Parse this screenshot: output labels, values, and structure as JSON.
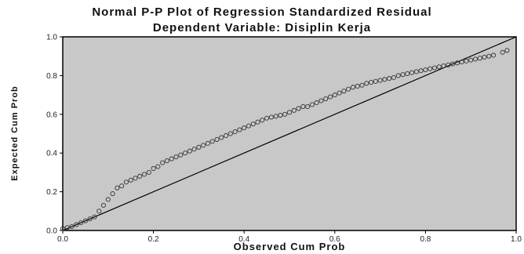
{
  "chart_data": {
    "type": "scatter",
    "title": "Normal P-P Plot of Regression Standardized Residual",
    "subtitle": "Dependent Variable: Disiplin Kerja",
    "xlabel": "Observed Cum Prob",
    "ylabel": "Expected Cum Prob",
    "xlim": [
      0.0,
      1.0
    ],
    "ylim": [
      0.0,
      1.0
    ],
    "x_ticks": [
      "0.0",
      "0.2",
      "0.4",
      "0.6",
      "0.8",
      "1.0"
    ],
    "y_ticks": [
      "0.0",
      "0.2",
      "0.4",
      "0.6",
      "0.8",
      "1.0"
    ],
    "reference_line": [
      [
        0.0,
        0.0
      ],
      [
        1.0,
        1.0
      ]
    ],
    "series": [
      {
        "x": [
          0.0,
          0.01,
          0.02,
          0.03,
          0.04,
          0.05,
          0.06,
          0.07,
          0.08,
          0.09,
          0.1,
          0.11,
          0.12,
          0.13,
          0.14,
          0.15,
          0.16,
          0.17,
          0.18,
          0.19,
          0.2,
          0.21,
          0.22,
          0.23,
          0.24,
          0.25,
          0.26,
          0.27,
          0.28,
          0.29,
          0.3,
          0.31,
          0.32,
          0.33,
          0.34,
          0.35,
          0.36,
          0.37,
          0.38,
          0.39,
          0.4,
          0.41,
          0.42,
          0.43,
          0.44,
          0.45,
          0.46,
          0.47,
          0.48,
          0.49,
          0.5,
          0.51,
          0.52,
          0.53,
          0.54,
          0.55,
          0.56,
          0.57,
          0.58,
          0.59,
          0.6,
          0.61,
          0.62,
          0.63,
          0.64,
          0.65,
          0.66,
          0.67,
          0.68,
          0.69,
          0.7,
          0.71,
          0.72,
          0.73,
          0.74,
          0.75,
          0.76,
          0.77,
          0.78,
          0.79,
          0.8,
          0.81,
          0.82,
          0.83,
          0.84,
          0.85,
          0.86,
          0.87,
          0.88,
          0.89,
          0.9,
          0.91,
          0.92,
          0.93,
          0.94,
          0.95,
          0.97,
          0.98
        ],
        "y": [
          0.01,
          0.015,
          0.02,
          0.03,
          0.04,
          0.05,
          0.06,
          0.07,
          0.1,
          0.13,
          0.16,
          0.19,
          0.22,
          0.23,
          0.25,
          0.26,
          0.27,
          0.28,
          0.29,
          0.3,
          0.32,
          0.33,
          0.35,
          0.36,
          0.37,
          0.38,
          0.39,
          0.4,
          0.41,
          0.42,
          0.43,
          0.44,
          0.45,
          0.46,
          0.47,
          0.48,
          0.49,
          0.5,
          0.51,
          0.52,
          0.53,
          0.54,
          0.55,
          0.56,
          0.57,
          0.58,
          0.585,
          0.59,
          0.595,
          0.6,
          0.61,
          0.62,
          0.63,
          0.64,
          0.64,
          0.65,
          0.66,
          0.67,
          0.68,
          0.69,
          0.7,
          0.71,
          0.72,
          0.73,
          0.74,
          0.745,
          0.75,
          0.76,
          0.765,
          0.77,
          0.775,
          0.78,
          0.785,
          0.79,
          0.8,
          0.805,
          0.81,
          0.815,
          0.82,
          0.825,
          0.83,
          0.835,
          0.84,
          0.845,
          0.85,
          0.855,
          0.86,
          0.865,
          0.87,
          0.875,
          0.88,
          0.885,
          0.89,
          0.895,
          0.9,
          0.905,
          0.92,
          0.93
        ]
      }
    ]
  }
}
